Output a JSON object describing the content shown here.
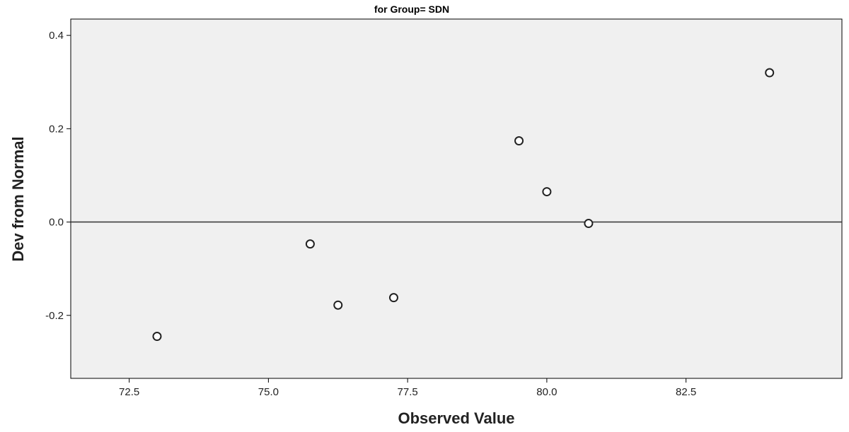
{
  "chart_data": {
    "type": "scatter",
    "title": "for Group= SDN",
    "xlabel": "Observed Value",
    "ylabel": "Dev from Normal",
    "xlim": [
      71.45,
      85.3
    ],
    "ylim": [
      -0.335,
      0.435
    ],
    "x_ticks": [
      72.5,
      75.0,
      77.5,
      80.0,
      82.5
    ],
    "x_tick_labels": [
      "72.5",
      "75.0",
      "77.5",
      "80.0",
      "82.5"
    ],
    "y_ticks": [
      0.4,
      0.2,
      0.0,
      -0.2
    ],
    "y_tick_labels": [
      "0.4",
      "0.2",
      "0.0",
      "-0.2"
    ],
    "reference_line_y": 0.0,
    "grid": false,
    "points": [
      {
        "x": 73.0,
        "y": -0.245
      },
      {
        "x": 75.75,
        "y": -0.047
      },
      {
        "x": 76.25,
        "y": -0.178
      },
      {
        "x": 77.25,
        "y": -0.162
      },
      {
        "x": 79.5,
        "y": 0.174
      },
      {
        "x": 80.0,
        "y": 0.065
      },
      {
        "x": 80.75,
        "y": -0.003
      },
      {
        "x": 84.0,
        "y": 0.32
      }
    ],
    "colors": {
      "plot_background": "#f0f0f0",
      "frame": "#000000",
      "marker_fill": "#ffffff",
      "marker_stroke": "#222222",
      "reference_line": "#333333"
    }
  }
}
